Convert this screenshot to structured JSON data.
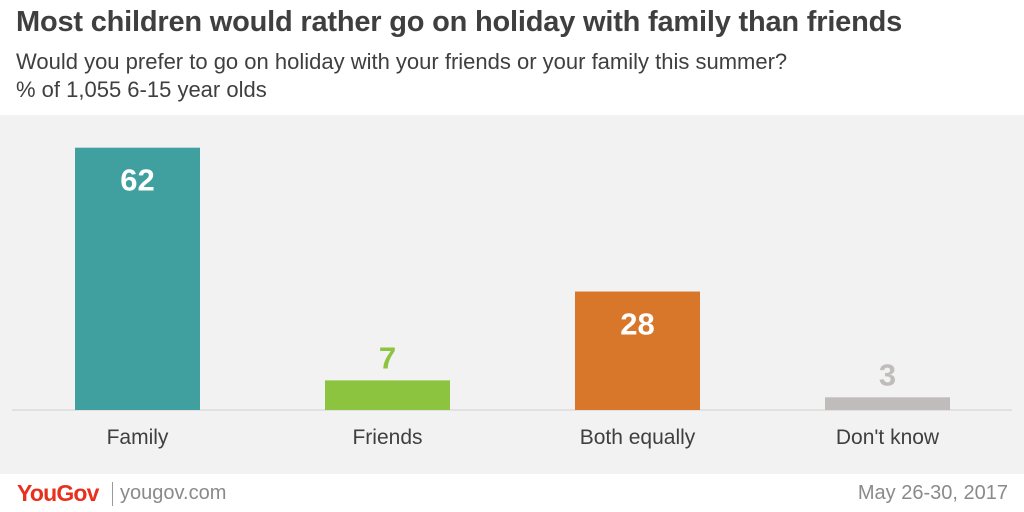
{
  "header": {
    "title": "Most children would rather go on holiday with family than friends",
    "subtitle": "Would you prefer to go on holiday with your friends or your family this summer?",
    "note": "% of 1,055 6-15 year olds"
  },
  "chart_data": {
    "type": "bar",
    "categories": [
      "Family",
      "Friends",
      "Both equally",
      "Don't know"
    ],
    "values": [
      62,
      7,
      28,
      3
    ],
    "colors": [
      "#40a0a0",
      "#8cc43f",
      "#d8772a",
      "#c0bcbc"
    ],
    "value_label_colors": [
      "#ffffff",
      "#8cc43f",
      "#ffffff",
      "#c0bcbc"
    ],
    "ylim": [
      0,
      65
    ],
    "grid": false,
    "legend": "none"
  },
  "footer": {
    "logo": "YouGov",
    "site": "yougov.com",
    "date": "May 26-30, 2017"
  }
}
